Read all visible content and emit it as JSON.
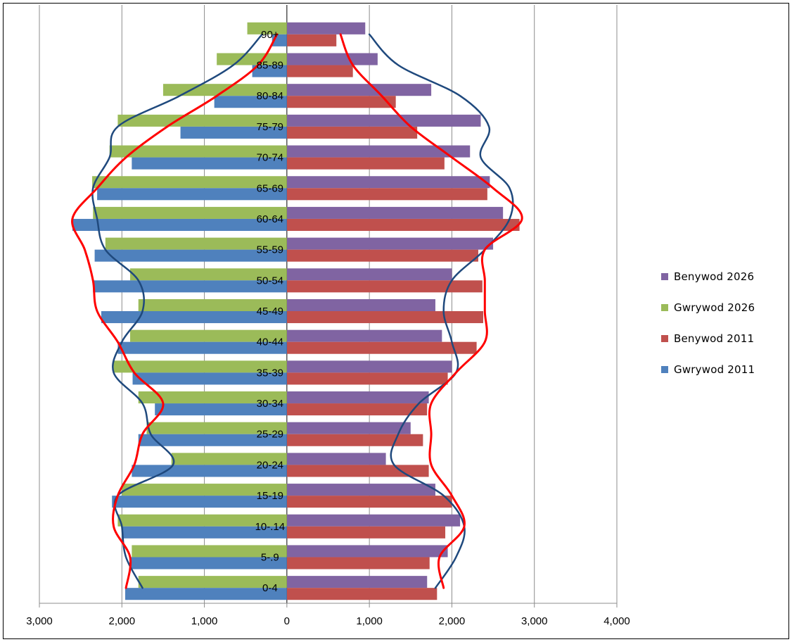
{
  "chart_data": {
    "type": "bar",
    "orientation": "horizontal",
    "layout": "population-pyramid",
    "title": "",
    "xlabel": "",
    "ylabel": "",
    "xlim": [
      -3000,
      4000
    ],
    "x_ticks": [
      -3000,
      -2000,
      -1000,
      0,
      1000,
      2000,
      3000,
      4000
    ],
    "x_tick_labels": [
      "3,000",
      "2,000",
      "1,000",
      "0",
      "1,000",
      "2,000",
      "3,000",
      "4,000"
    ],
    "grid": "vertical",
    "legend_position": "right",
    "categories": [
      "0-4",
      "5-.9",
      "10-.14",
      "15-19",
      "20-24",
      "25-29",
      "30-34",
      "35-39",
      "40-44",
      "45-49",
      "50-54",
      "55-59",
      "60-64",
      "65-69",
      "70-74",
      "75-79",
      "80-84",
      "85-89",
      "90+"
    ],
    "series": [
      {
        "name": "Benywod 2026",
        "side": "right",
        "color": "#8064A2",
        "values": [
          1700,
          1950,
          2100,
          1800,
          1200,
          1500,
          1720,
          2000,
          1880,
          1800,
          2000,
          2500,
          2620,
          2460,
          2220,
          2350,
          1750,
          1100,
          950
        ]
      },
      {
        "name": "Gwrywod 2026",
        "side": "left",
        "color": "#9BBB59",
        "values": [
          1800,
          1880,
          2050,
          2000,
          1400,
          1700,
          1800,
          2100,
          1900,
          1800,
          1900,
          2200,
          2350,
          2360,
          2150,
          2050,
          1500,
          850,
          480
        ]
      },
      {
        "name": "Benywod 2011",
        "side": "right",
        "color": "#C0504D",
        "values": [
          1820,
          1730,
          1920,
          2000,
          1720,
          1650,
          1700,
          1950,
          2300,
          2380,
          2370,
          2320,
          2820,
          2430,
          1910,
          1580,
          1320,
          800,
          600
        ]
      },
      {
        "name": "Gwrywod 2011",
        "side": "left",
        "color": "#4F81BD",
        "values": [
          1960,
          1900,
          2000,
          2120,
          1880,
          1800,
          1600,
          1870,
          2050,
          2250,
          2350,
          2330,
          2600,
          2300,
          1880,
          1290,
          880,
          420,
          180
        ]
      }
    ],
    "trend_lines": [
      {
        "color": "#1F497D",
        "side": "left",
        "values": [
          1750,
          1950,
          2000,
          2050,
          1380,
          1650,
          1750,
          2100,
          2000,
          1750,
          1800,
          2200,
          2300,
          2350,
          2150,
          2050,
          1300,
          650,
          300
        ]
      },
      {
        "color": "#1F497D",
        "side": "right",
        "values": [
          1800,
          2050,
          2150,
          1900,
          1300,
          1350,
          1600,
          2050,
          2000,
          1900,
          2000,
          2400,
          2700,
          2700,
          2350,
          2450,
          2100,
          1350,
          1000
        ]
      },
      {
        "color": "#FF0000",
        "side": "left",
        "values": [
          1950,
          1900,
          2100,
          2050,
          1850,
          1750,
          1500,
          1850,
          2050,
          2300,
          2350,
          2450,
          2600,
          2300,
          1950,
          1450,
          850,
          350,
          120
        ]
      },
      {
        "color": "#FF0000",
        "side": "right",
        "values": [
          1900,
          1850,
          2150,
          2000,
          1750,
          1750,
          1750,
          2050,
          2400,
          2400,
          2400,
          2400,
          2850,
          2500,
          2000,
          1500,
          1150,
          800,
          650
        ]
      }
    ],
    "legend_order": [
      "Benywod 2026",
      "Gwrywod 2026",
      "Benywod 2011",
      "Gwrywod 2011"
    ]
  }
}
